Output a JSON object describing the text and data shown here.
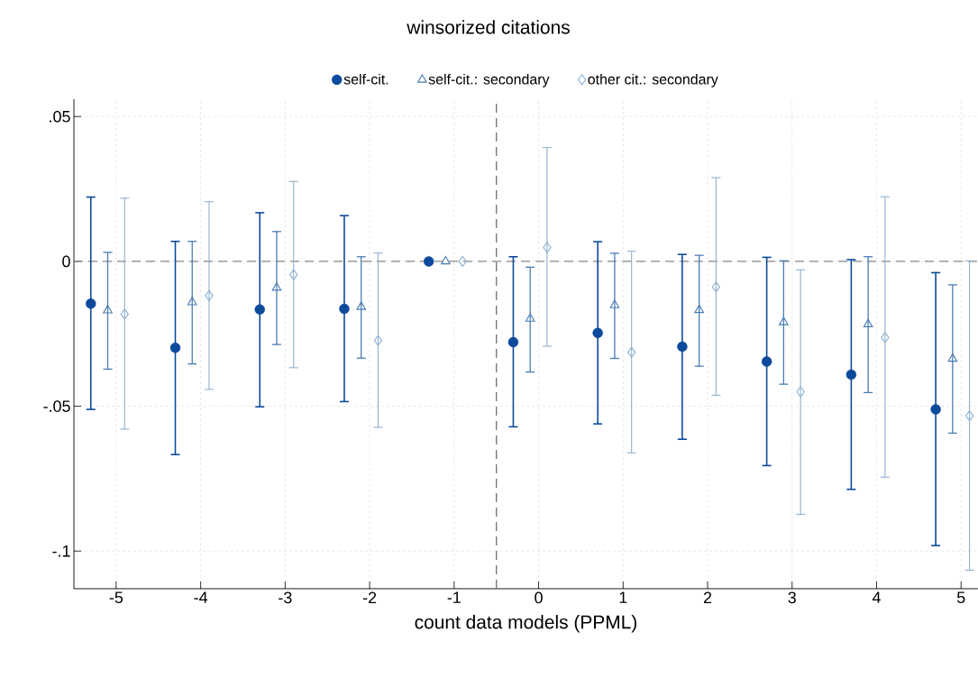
{
  "chart_data": {
    "type": "scatter",
    "title": "winsorized citations",
    "xlabel": "count data models (PPML)",
    "xlim": [
      -5.5,
      5.2
    ],
    "xticks": [
      -5,
      -4,
      -3,
      -2,
      -1,
      0,
      1,
      2,
      3,
      4,
      5
    ],
    "ylim": [
      -0.113,
      0.056
    ],
    "yticks": [
      {
        "value": 0.05,
        "label": ".05"
      },
      {
        "value": 0,
        "label": "0"
      },
      {
        "value": -0.05,
        "label": "-.05"
      },
      {
        "value": -0.1,
        "label": "-.1"
      }
    ],
    "grid": true,
    "legend": "top",
    "ref_lines": [
      {
        "axis": "y",
        "value": 0,
        "color": "#888888",
        "line_style": "dashed"
      },
      {
        "axis": "x",
        "value": -0.5,
        "color": "#777777",
        "line_style": "dashed"
      }
    ],
    "series": [
      {
        "name": "self-cit.",
        "color": "#0c4a9c",
        "marker": "circle",
        "x": [
          -5.3,
          -4.3,
          -3.3,
          -2.3,
          -1.3,
          -0.3,
          0.7,
          1.7,
          2.7,
          3.7,
          4.7
        ],
        "values": [
          -0.0146,
          -0.0298,
          -0.0166,
          -0.0164,
          0,
          -0.0279,
          -0.0247,
          -0.0294,
          -0.0346,
          -0.0391,
          -0.0511
        ],
        "errors": [
          [
            -0.0511,
            0.0222
          ],
          [
            -0.0667,
            0.0069
          ],
          [
            -0.0502,
            0.0168
          ],
          [
            -0.0484,
            0.0158
          ],
          null,
          [
            -0.0571,
            0.0016
          ],
          [
            -0.0561,
            0.0068
          ],
          [
            -0.0614,
            0.0024
          ],
          [
            -0.0705,
            0.0014
          ],
          [
            -0.0787,
            0.0006
          ],
          [
            -0.0981,
            -0.0039
          ]
        ]
      },
      {
        "name": "self-cit.: secondary",
        "color": "#4a7cb3",
        "marker": "triangle",
        "x": [
          -5.1,
          -4.1,
          -3.1,
          -2.1,
          -1.1,
          -0.1,
          0.9,
          1.9,
          2.9,
          3.9,
          4.9
        ],
        "values": [
          -0.0169,
          -0.0141,
          -0.0091,
          -0.0157,
          0,
          -0.0198,
          -0.0151,
          -0.0168,
          -0.021,
          -0.0217,
          -0.0336
        ],
        "errors": [
          [
            -0.0372,
            0.0031
          ],
          [
            -0.0354,
            0.0069
          ],
          [
            -0.0287,
            0.0103
          ],
          [
            -0.0334,
            0.0016
          ],
          null,
          [
            -0.0382,
            -0.002
          ],
          [
            -0.0335,
            0.0028
          ],
          [
            -0.0362,
            0.0021
          ],
          [
            -0.0424,
            0.0002
          ],
          [
            -0.0453,
            0.0016
          ],
          [
            -0.0593,
            -0.0081
          ]
        ]
      },
      {
        "name": "other cit.: secondary",
        "color": "#8db0d0",
        "marker": "diamond",
        "x": [
          -4.9,
          -3.9,
          -2.9,
          -1.9,
          -0.9,
          0.1,
          1.1,
          2.1,
          3.1,
          4.1,
          5.1
        ],
        "values": [
          -0.0182,
          -0.0118,
          -0.0046,
          -0.0273,
          0,
          0.0048,
          -0.0314,
          -0.0088,
          -0.045,
          -0.0263,
          -0.0533
        ],
        "errors": [
          [
            -0.0579,
            0.0218
          ],
          [
            -0.0442,
            0.0206
          ],
          [
            -0.0367,
            0.0276
          ],
          [
            -0.0573,
            0.0029
          ],
          null,
          [
            -0.0293,
            0.0393
          ],
          [
            -0.0661,
            0.0035
          ],
          [
            -0.0462,
            0.0289
          ],
          [
            -0.0873,
            -0.0029
          ],
          [
            -0.0745,
            0.0223
          ],
          [
            -0.1066,
            0.0002
          ]
        ]
      }
    ]
  }
}
